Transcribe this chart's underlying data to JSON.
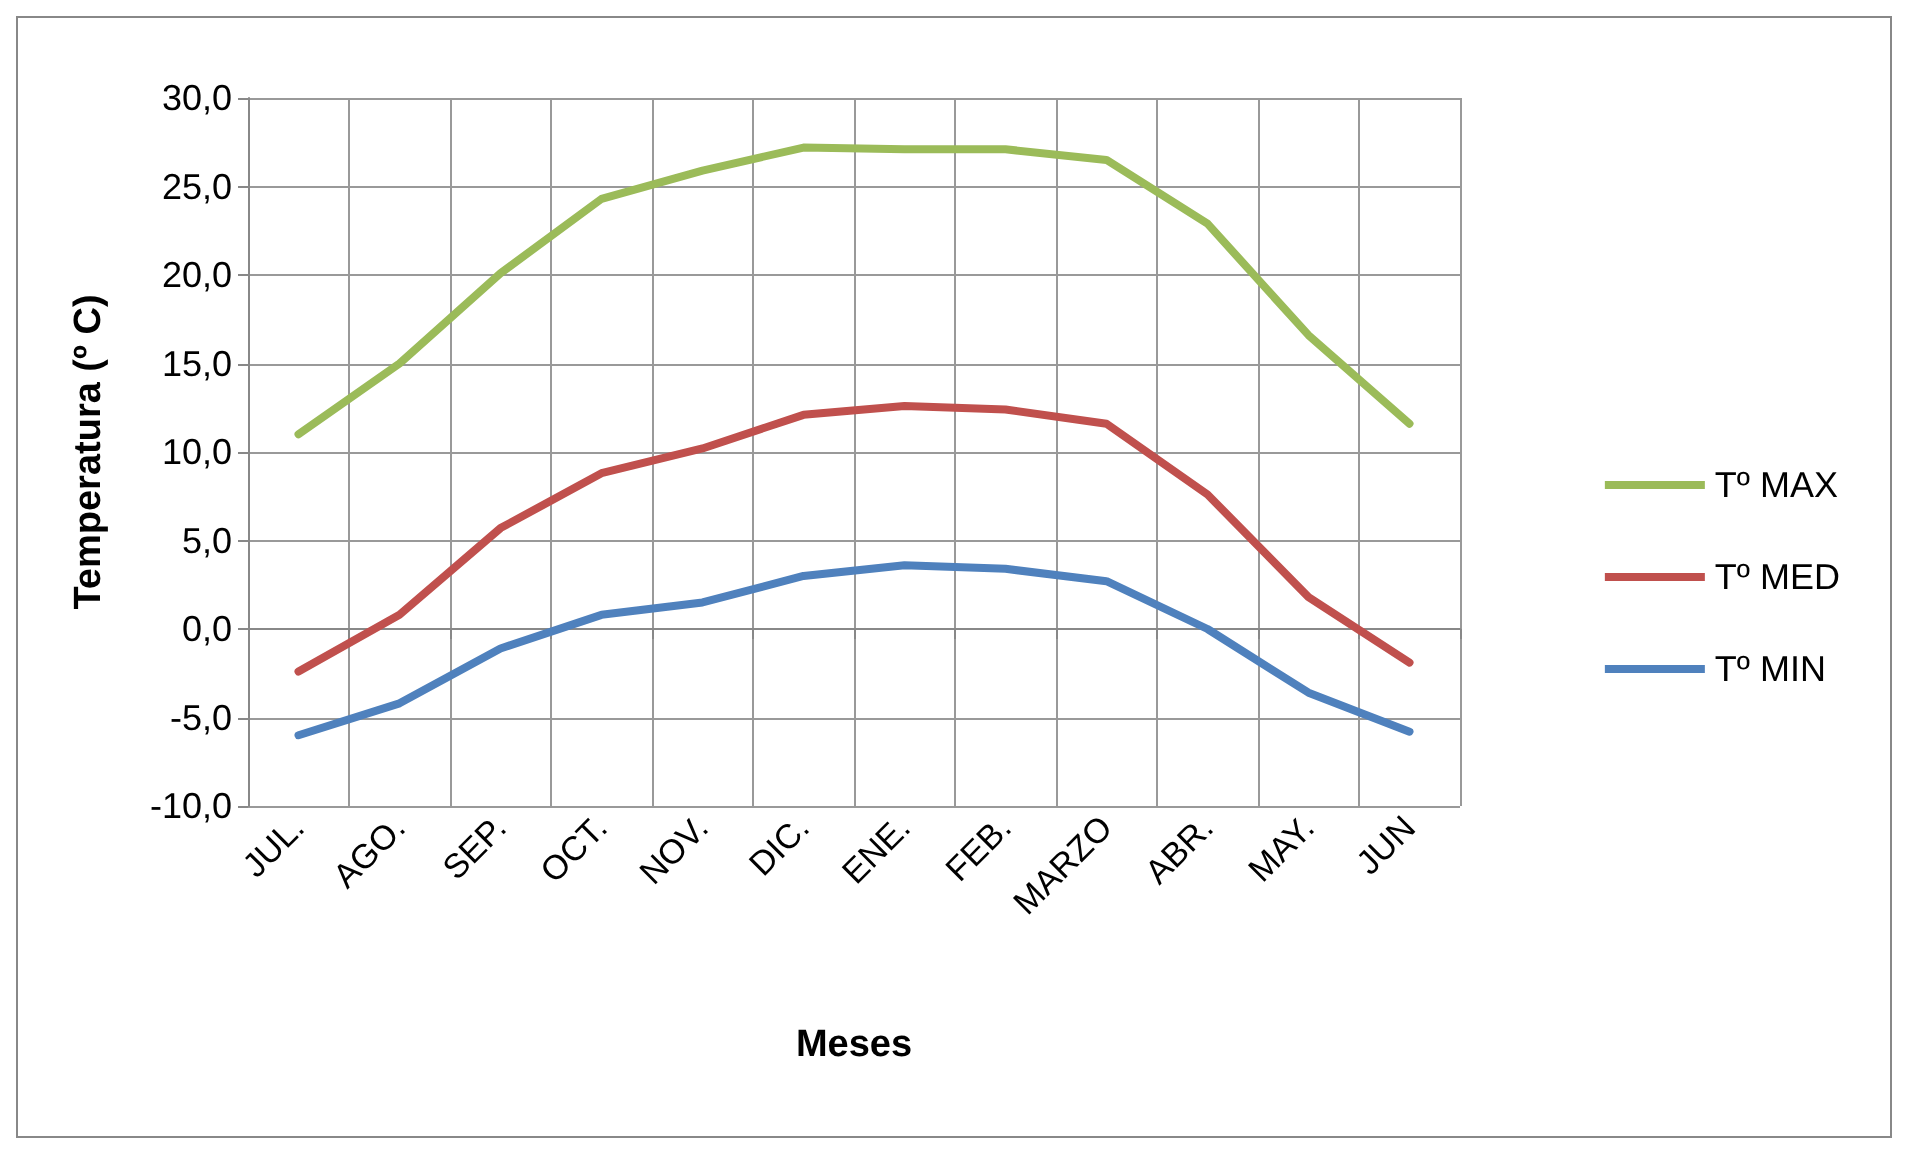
{
  "chart_data": {
    "type": "line",
    "xlabel": "Meses",
    "ylabel": "Temperatura (º C)",
    "categories": [
      "JUL.",
      "AGO.",
      "SEP.",
      "OCT.",
      "NOV.",
      "DIC.",
      "ENE.",
      "FEB.",
      "MARZO",
      "ABR.",
      "MAY.",
      "JUN"
    ],
    "series": [
      {
        "name": "Tº MAX",
        "color": "#9bbb59",
        "values": [
          11.0,
          15.0,
          20.1,
          24.3,
          25.9,
          27.2,
          27.1,
          27.1,
          26.5,
          22.9,
          16.6,
          11.6
        ]
      },
      {
        "name": "Tº MED",
        "color": "#c0504d",
        "values": [
          -2.4,
          0.8,
          5.7,
          8.8,
          10.2,
          12.1,
          12.6,
          12.4,
          11.6,
          7.6,
          1.8,
          -1.9
        ]
      },
      {
        "name": "Tº MIN",
        "color": "#4f81bd",
        "values": [
          -6.0,
          -4.2,
          -1.1,
          0.8,
          1.5,
          3.0,
          3.6,
          3.4,
          2.7,
          0.0,
          -3.6,
          -5.8
        ]
      }
    ],
    "ylim": [
      -10,
      30
    ],
    "yticks": [
      {
        "value": -10,
        "label": "-10,0"
      },
      {
        "value": -5,
        "label": "-5,0"
      },
      {
        "value": 0,
        "label": "0,0"
      },
      {
        "value": 5,
        "label": "5,0"
      },
      {
        "value": 10,
        "label": "10,0"
      },
      {
        "value": 15,
        "label": "15,0"
      },
      {
        "value": 20,
        "label": "20,0"
      },
      {
        "value": 25,
        "label": "25,0"
      },
      {
        "value": 30,
        "label": "30,0"
      }
    ],
    "grid": true,
    "legend": "right",
    "marker": "none",
    "line_style": "solid"
  }
}
